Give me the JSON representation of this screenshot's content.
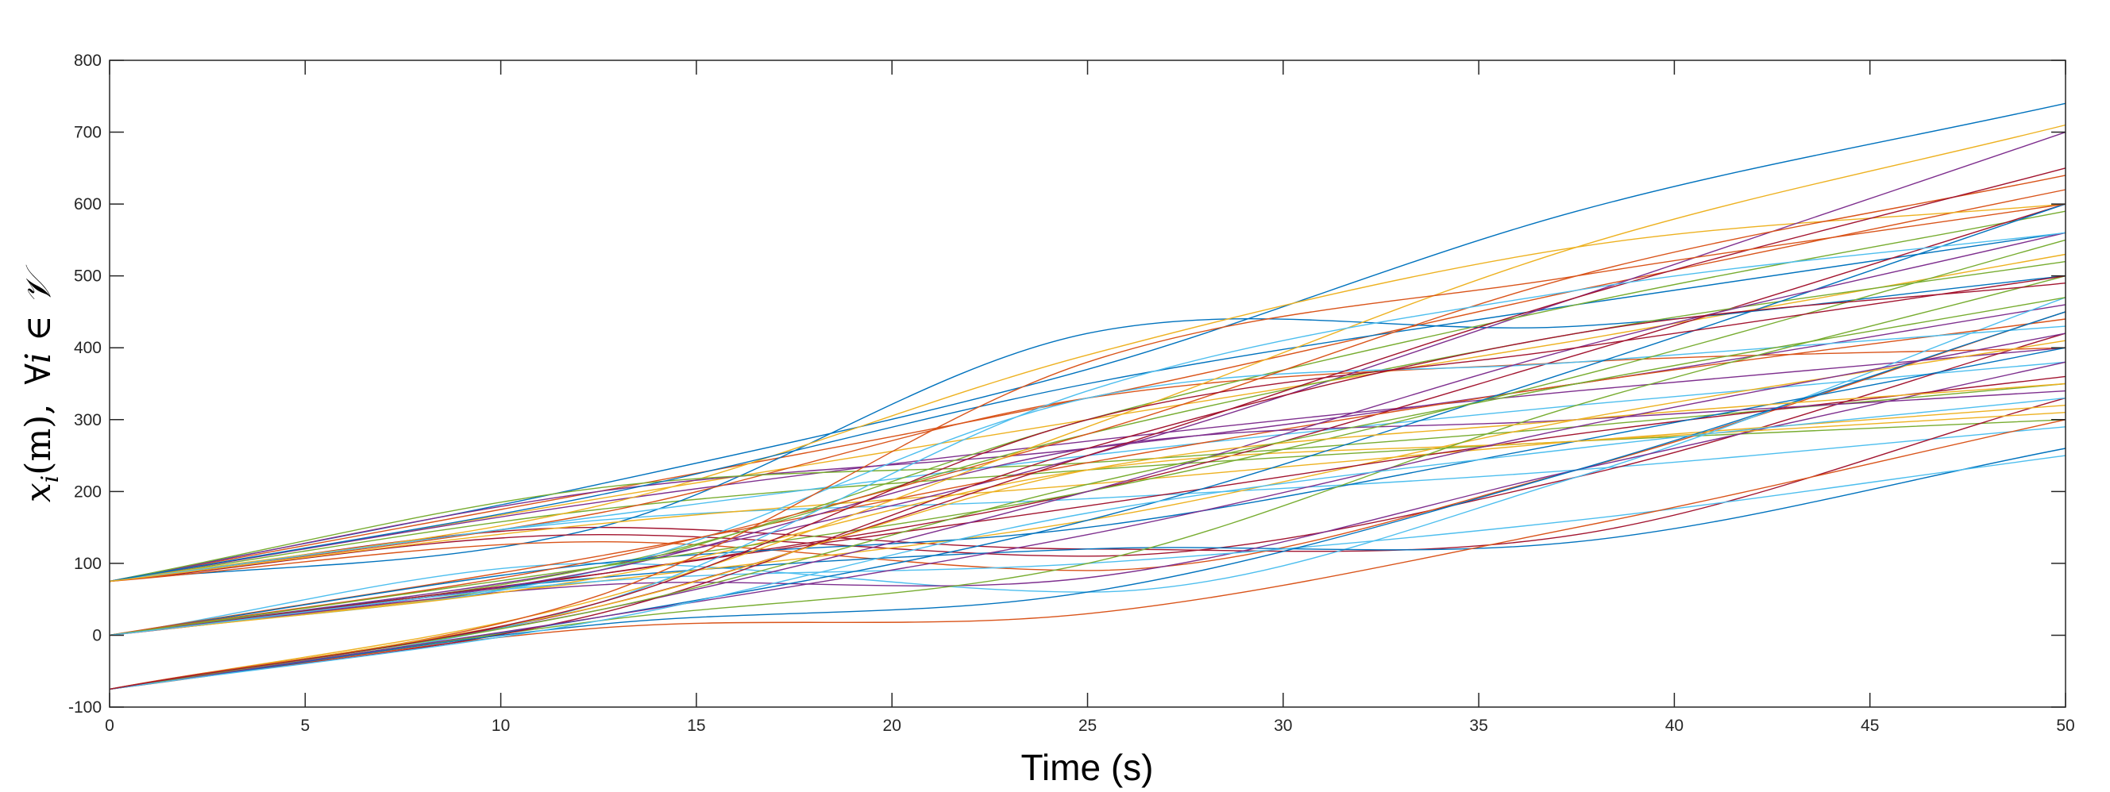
{
  "chart_data": {
    "type": "line",
    "title": "",
    "xlabel": "Time (s)",
    "ylabel": "x_i(m),  ∀i ∈ 𝒱",
    "ylabel_parts": {
      "var": "x",
      "sub": "i",
      "unit": "(m),",
      "quant": "∀i ∈ 𝒱"
    },
    "xlim": [
      0,
      50
    ],
    "ylim": [
      -100,
      800
    ],
    "xticks": [
      "0",
      "5",
      "10",
      "15",
      "20",
      "25",
      "30",
      "35",
      "40",
      "45",
      "50"
    ],
    "yticks": [
      "-100",
      "0",
      "100",
      "200",
      "300",
      "400",
      "500",
      "600",
      "700",
      "800"
    ],
    "grid": false,
    "legend": "none",
    "colors": [
      "#0072BD",
      "#D95319",
      "#EDB120",
      "#7E2F8E",
      "#77AC30",
      "#4DBEEE",
      "#A2142F"
    ],
    "series": [
      {
        "x": [
          0,
          12.5,
          25,
          37.5,
          50
        ],
        "y": [
          75,
          210,
          370,
          590,
          740
        ]
      },
      {
        "x": [
          0,
          12.5,
          25,
          37.5,
          50
        ],
        "y": [
          75,
          200,
          330,
          480,
          620
        ]
      },
      {
        "x": [
          0,
          12.5,
          25,
          37.5,
          50
        ],
        "y": [
          75,
          190,
          300,
          410,
          530
        ]
      },
      {
        "x": [
          0,
          12.5,
          25,
          37.5,
          50
        ],
        "y": [
          75,
          185,
          270,
          340,
          400
        ]
      },
      {
        "x": [
          0,
          12.5,
          25,
          37.5,
          50
        ],
        "y": [
          75,
          175,
          230,
          270,
          300
        ]
      },
      {
        "x": [
          0,
          12.5,
          25,
          37.5,
          50
        ],
        "y": [
          75,
          160,
          190,
          230,
          290
        ]
      },
      {
        "x": [
          0,
          12.5,
          25,
          37.5,
          50
        ],
        "y": [
          75,
          150,
          120,
          140,
          330
        ]
      },
      {
        "x": [
          0,
          12.5,
          25,
          37.5,
          50
        ],
        "y": [
          75,
          150,
          420,
          430,
          500
        ]
      },
      {
        "x": [
          0,
          12.5,
          25,
          37.5,
          50
        ],
        "y": [
          75,
          170,
          330,
          380,
          400
        ]
      },
      {
        "x": [
          0,
          12.5,
          25,
          37.5,
          50
        ],
        "y": [
          75,
          180,
          390,
          540,
          600
        ]
      },
      {
        "x": [
          0,
          12.5,
          25,
          37.5,
          50
        ],
        "y": [
          75,
          200,
          260,
          350,
          460
        ]
      },
      {
        "x": [
          0,
          12.5,
          25,
          37.5,
          50
        ],
        "y": [
          75,
          205,
          240,
          290,
          350
        ]
      },
      {
        "x": [
          0,
          12.5,
          25,
          37.5,
          50
        ],
        "y": [
          75,
          165,
          250,
          320,
          380
        ]
      },
      {
        "x": [
          0,
          12.5,
          25,
          37.5,
          50
        ],
        "y": [
          75,
          140,
          110,
          220,
          420
        ]
      },
      {
        "x": [
          0,
          12.5,
          25,
          37.5,
          50
        ],
        "y": [
          75,
          195,
          350,
          460,
          560
        ]
      },
      {
        "x": [
          0,
          12.5,
          25,
          37.5,
          50
        ],
        "y": [
          75,
          130,
          90,
          230,
          450
        ]
      },
      {
        "x": [
          0,
          12.5,
          25,
          37.5,
          50
        ],
        "y": [
          75,
          155,
          210,
          270,
          320
        ]
      },
      {
        "x": [
          0,
          12.5,
          25,
          37.5,
          50
        ],
        "y": [
          0,
          95,
          250,
          470,
          700
        ]
      },
      {
        "x": [
          0,
          12.5,
          25,
          37.5,
          50
        ],
        "y": [
          0,
          90,
          300,
          460,
          590
        ]
      },
      {
        "x": [
          0,
          12.5,
          25,
          37.5,
          50
        ],
        "y": [
          0,
          100,
          60,
          220,
          470
        ]
      },
      {
        "x": [
          0,
          12.5,
          25,
          37.5,
          50
        ],
        "y": [
          0,
          85,
          200,
          390,
          600
        ]
      },
      {
        "x": [
          0,
          12.5,
          25,
          37.5,
          50
        ],
        "y": [
          0,
          80,
          120,
          130,
          260
        ]
      },
      {
        "x": [
          0,
          12.5,
          25,
          37.5,
          50
        ],
        "y": [
          0,
          110,
          240,
          350,
          440
        ]
      },
      {
        "x": [
          0,
          12.5,
          25,
          37.5,
          50
        ],
        "y": [
          0,
          75,
          160,
          300,
          410
        ]
      },
      {
        "x": [
          0,
          12.5,
          25,
          37.5,
          50
        ],
        "y": [
          0,
          70,
          80,
          230,
          380
        ]
      },
      {
        "x": [
          0,
          12.5,
          25,
          37.5,
          50
        ],
        "y": [
          0,
          95,
          280,
          420,
          520
        ]
      },
      {
        "x": [
          0,
          12.5,
          25,
          37.5,
          50
        ],
        "y": [
          0,
          90,
          330,
          380,
          430
        ]
      },
      {
        "x": [
          0,
          12.5,
          25,
          37.5,
          50
        ],
        "y": [
          0,
          85,
          180,
          280,
          360
        ]
      },
      {
        "x": [
          0,
          12.5,
          25,
          37.5,
          50
        ],
        "y": [
          0,
          100,
          150,
          270,
          400
        ]
      },
      {
        "x": [
          0,
          12.5,
          25,
          37.5,
          50
        ],
        "y": [
          0,
          105,
          280,
          500,
          640
        ]
      },
      {
        "x": [
          0,
          12.5,
          25,
          37.5,
          50
        ],
        "y": [
          0,
          80,
          230,
          270,
          310
        ]
      },
      {
        "x": [
          0,
          12.5,
          25,
          37.5,
          50
        ],
        "y": [
          0,
          90,
          260,
          300,
          340
        ]
      },
      {
        "x": [
          0,
          12.5,
          25,
          37.5,
          50
        ],
        "y": [
          0,
          95,
          200,
          360,
          550
        ]
      },
      {
        "x": [
          0,
          12.5,
          25,
          37.5,
          50
        ],
        "y": [
          0,
          75,
          100,
          160,
          250
        ]
      },
      {
        "x": [
          0,
          12.5,
          25,
          37.5,
          50
        ],
        "y": [
          -75,
          40,
          250,
          470,
          650
        ]
      },
      {
        "x": [
          0,
          12.5,
          25,
          37.5,
          50
        ],
        "y": [
          -75,
          25,
          160,
          370,
          600
        ]
      },
      {
        "x": [
          0,
          12.5,
          25,
          37.5,
          50
        ],
        "y": [
          -75,
          10,
          30,
          150,
          300
        ]
      },
      {
        "x": [
          0,
          12.5,
          25,
          37.5,
          50
        ],
        "y": [
          -75,
          50,
          290,
          540,
          710
        ]
      },
      {
        "x": [
          0,
          12.5,
          25,
          37.5,
          50
        ],
        "y": [
          -75,
          35,
          200,
          400,
          560
        ]
      },
      {
        "x": [
          0,
          12.5,
          25,
          37.5,
          50
        ],
        "y": [
          -75,
          20,
          100,
          320,
          500
        ]
      },
      {
        "x": [
          0,
          12.5,
          25,
          37.5,
          50
        ],
        "y": [
          -75,
          45,
          340,
          480,
          560
        ]
      },
      {
        "x": [
          0,
          12.5,
          25,
          37.5,
          50
        ],
        "y": [
          -75,
          30,
          260,
          420,
          490
        ]
      },
      {
        "x": [
          0,
          12.5,
          25,
          37.5,
          50
        ],
        "y": [
          -75,
          15,
          60,
          230,
          450
        ]
      },
      {
        "x": [
          0,
          12.5,
          25,
          37.5,
          50
        ],
        "y": [
          -75,
          55,
          380,
          500,
          600
        ]
      },
      {
        "x": [
          0,
          12.5,
          25,
          37.5,
          50
        ],
        "y": [
          -75,
          40,
          230,
          300,
          350
        ]
      },
      {
        "x": [
          0,
          12.5,
          25,
          37.5,
          50
        ],
        "y": [
          -75,
          25,
          140,
          290,
          420
        ]
      },
      {
        "x": [
          0,
          12.5,
          25,
          37.5,
          50
        ],
        "y": [
          -75,
          35,
          210,
          350,
          470
        ]
      },
      {
        "x": [
          0,
          12.5,
          25,
          37.5,
          50
        ],
        "y": [
          -75,
          20,
          170,
          260,
          330
        ]
      },
      {
        "x": [
          0,
          12.5,
          25,
          37.5,
          50
        ],
        "y": [
          -75,
          45,
          300,
          400,
          500
        ]
      }
    ]
  }
}
